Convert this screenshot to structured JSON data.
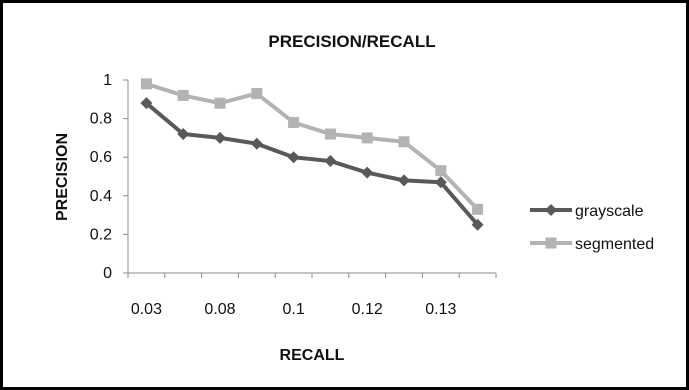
{
  "chart_data": {
    "type": "line",
    "title": "PRECISION/RECALL",
    "xlabel": "RECALL",
    "ylabel": "PRECISION",
    "x_tick_labels": [
      "0.03",
      "0.08",
      "0.1",
      "0.12",
      "0.13"
    ],
    "ylim": [
      0,
      1
    ],
    "y_ticks": [
      "0",
      "0.2",
      "0.4",
      "0.6",
      "0.8",
      "1"
    ],
    "grid": false,
    "legend_position": "right",
    "series": [
      {
        "name": "grayscale",
        "color": "#595959",
        "marker": "diamond",
        "values": [
          0.88,
          0.72,
          0.7,
          0.67,
          0.6,
          0.58,
          0.52,
          0.48,
          0.47,
          0.25
        ]
      },
      {
        "name": "segmented",
        "color": "#b3b3b3",
        "marker": "square",
        "values": [
          0.98,
          0.92,
          0.88,
          0.93,
          0.78,
          0.72,
          0.7,
          0.68,
          0.53,
          0.33
        ]
      }
    ]
  }
}
